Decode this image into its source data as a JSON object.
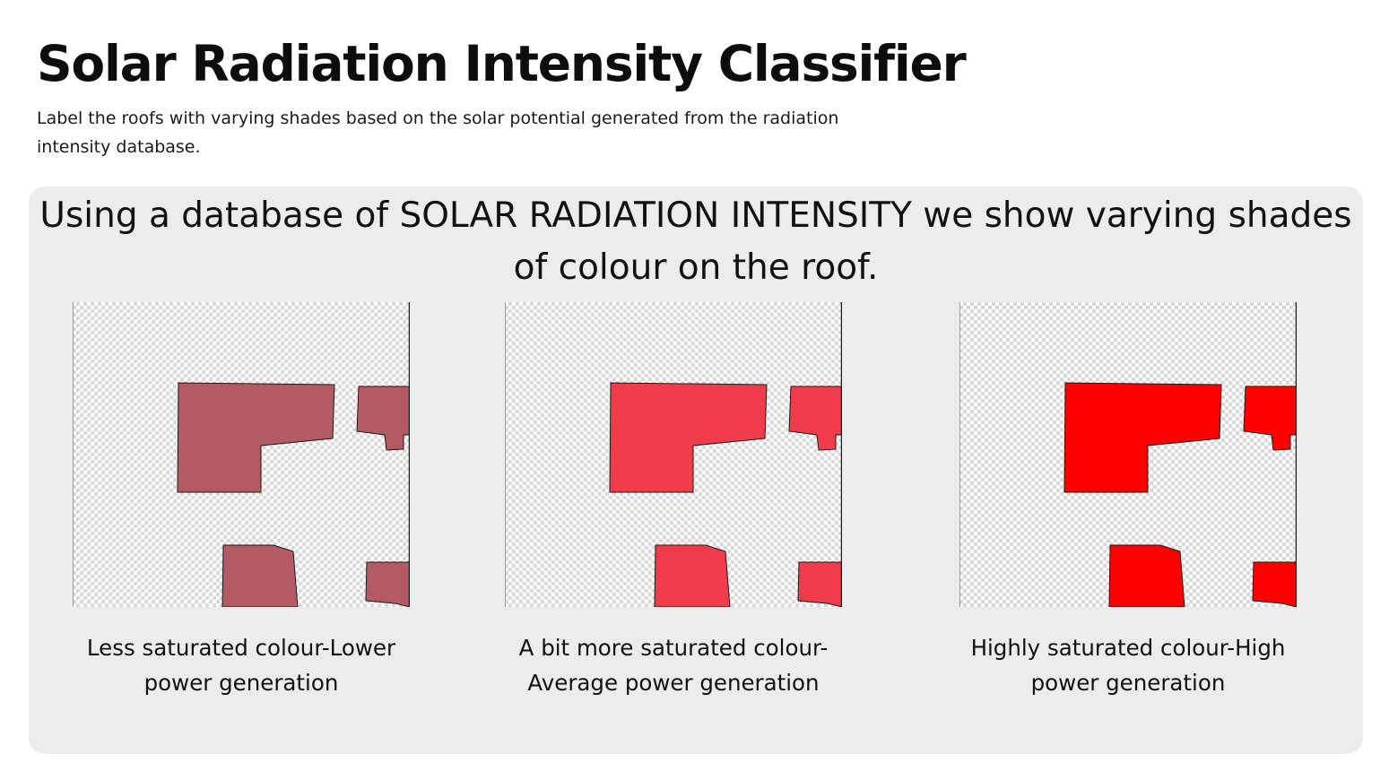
{
  "header": {
    "title": "Solar Radiation Intensity Classifier",
    "subtitle": "Label the roofs with varying shades based on the solar potential generated from the radiation intensity database."
  },
  "panel": {
    "heading": "Using a database of SOLAR RADIATION INTENSITY we show varying shades of colour on the roof."
  },
  "cards": [
    {
      "caption": "Less saturated colour-Lower power generation",
      "fill_color": "#b45a62",
      "saturation_level": "low"
    },
    {
      "caption": "A bit more saturated colour-Average power generation",
      "fill_color": "#f03c4a",
      "saturation_level": "average"
    },
    {
      "caption": "Highly saturated colour-High power generation",
      "fill_color": "#ff0000",
      "saturation_level": "high"
    }
  ],
  "colors": {
    "panel_background": "#ececec",
    "checkerboard_dark": "#d8d8d8",
    "checkerboard_light": "#ffffff",
    "roof_outline": "#1a1a1a"
  }
}
